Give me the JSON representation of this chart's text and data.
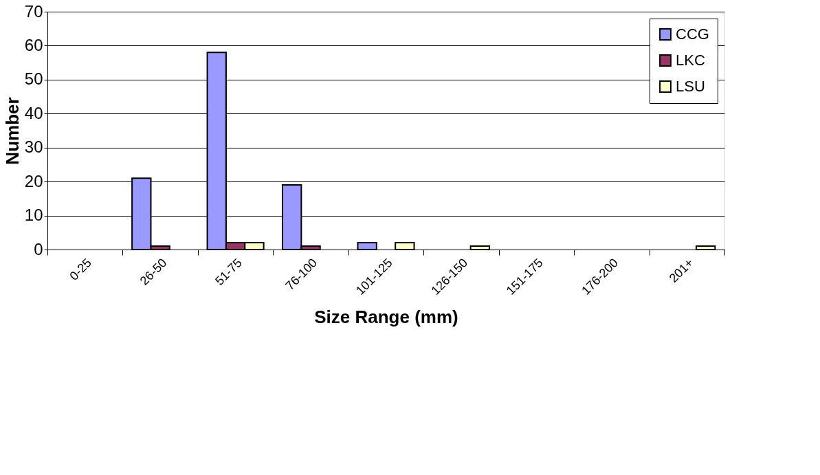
{
  "chart_data": {
    "type": "bar",
    "xlabel": "Size Range (mm)",
    "ylabel": "Number",
    "categories": [
      "0-25",
      "26-50",
      "51-75",
      "76-100",
      "101-125",
      "126-150",
      "151-175",
      "176-200",
      "201+"
    ],
    "series": [
      {
        "name": "CCG",
        "color": "#9999ff",
        "values": [
          0,
          21,
          58,
          19,
          2,
          0,
          0,
          0,
          0
        ]
      },
      {
        "name": "LKC",
        "color": "#993366",
        "values": [
          0,
          1,
          2,
          1,
          0,
          0,
          0,
          0,
          0
        ]
      },
      {
        "name": "LSU",
        "color": "#ffffcc",
        "values": [
          0,
          0,
          2,
          0,
          2,
          1,
          0,
          0,
          1
        ]
      }
    ],
    "ylim": [
      0,
      70
    ],
    "yticks": [
      0,
      10,
      20,
      30,
      40,
      50,
      60,
      70
    ],
    "grid": "y",
    "legend": "top right"
  }
}
